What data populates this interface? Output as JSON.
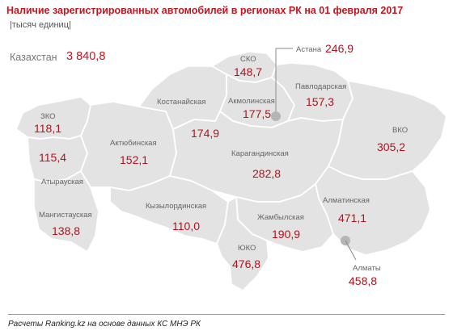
{
  "title": "Наличие зарегистрированных автомобилей в регионах РК на 01 февраля 2017",
  "subtitle": "|тысяч единиц|",
  "total": {
    "label": "Казахстан",
    "value": "3 840,8"
  },
  "regions": [
    {
      "name": "СКО",
      "value": "148,7"
    },
    {
      "name": "Астана",
      "value": "246,9"
    },
    {
      "name": "Павлодарская",
      "value": "157,3"
    },
    {
      "name": "Костанайская",
      "value": ""
    },
    {
      "name": "Акмолинская",
      "value": "177,5"
    },
    {
      "name": "",
      "value": "174,9"
    },
    {
      "name": "ЗКО",
      "value": "118,1"
    },
    {
      "name": "ВКО",
      "value": "305,2"
    },
    {
      "name": "Актюбинская",
      "value": "152,1"
    },
    {
      "name": "Атырауская",
      "value": "115,4"
    },
    {
      "name": "Карагандинская",
      "value": "282,8"
    },
    {
      "name": "Алматинская",
      "value": "471,1"
    },
    {
      "name": "Кызылординская",
      "value": "110,0"
    },
    {
      "name": "Мангистауская",
      "value": "138,8"
    },
    {
      "name": "Жамбылская",
      "value": "190,9"
    },
    {
      "name": "ЮКО",
      "value": "476,8"
    },
    {
      "name": "Алматы",
      "value": "458,8"
    }
  ],
  "source": "Расчеты Ranking.kz на основе данных КС МНЭ РК",
  "colors": {
    "accent": "#c8141e",
    "region_fill": "#e3e3e3",
    "border": "#ffffff",
    "capital_dot": "#b5b5b5"
  }
}
